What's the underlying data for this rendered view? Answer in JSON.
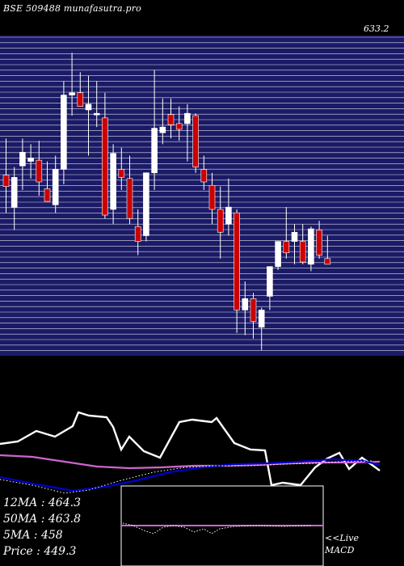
{
  "header": {
    "title": "BSE 509488  munafasutra.pro",
    "top_price_label": "633.2"
  },
  "colors": {
    "background": "#000000",
    "grid_band": "#1a1a66",
    "grid_line": "#ffffff",
    "bull_candle": "#ffffff",
    "bear_candle": "#cc0000",
    "price_line": "#ffffff",
    "ma_pink": "#cc66cc",
    "ma_blue": "#0000cc",
    "dotted": "#ffffff"
  },
  "indicators": {
    "ma12": {
      "label": "12MA",
      "value": "464.3"
    },
    "ma50": {
      "label": "50MA",
      "value": "463.8"
    },
    "ma5": {
      "label": "5MA",
      "value": "458"
    },
    "price": {
      "label": "Price ",
      "value": "449.3"
    }
  },
  "live_label": "<<Live",
  "macd_label": "MACD",
  "chart_data": {
    "type": "candlestick",
    "title": "BSE 509488  munafasutra.pro",
    "candles": [
      {
        "o": 558,
        "h": 590,
        "l": 525,
        "c": 548
      },
      {
        "o": 530,
        "h": 565,
        "l": 510,
        "c": 556
      },
      {
        "o": 566,
        "h": 590,
        "l": 545,
        "c": 578
      },
      {
        "o": 570,
        "h": 585,
        "l": 555,
        "c": 573
      },
      {
        "o": 571,
        "h": 588,
        "l": 540,
        "c": 552
      },
      {
        "o": 546,
        "h": 570,
        "l": 535,
        "c": 535
      },
      {
        "o": 532,
        "h": 575,
        "l": 525,
        "c": 563
      },
      {
        "o": 563,
        "h": 640,
        "l": 550,
        "c": 628
      },
      {
        "o": 628,
        "h": 665,
        "l": 610,
        "c": 630
      },
      {
        "o": 630,
        "h": 648,
        "l": 618,
        "c": 618
      },
      {
        "o": 615,
        "h": 645,
        "l": 575,
        "c": 620
      },
      {
        "o": 612,
        "h": 640,
        "l": 600,
        "c": 612
      },
      {
        "o": 608,
        "h": 630,
        "l": 520,
        "c": 523
      },
      {
        "o": 528,
        "h": 585,
        "l": 515,
        "c": 577
      },
      {
        "o": 563,
        "h": 582,
        "l": 545,
        "c": 556
      },
      {
        "o": 555,
        "h": 575,
        "l": 515,
        "c": 520
      },
      {
        "o": 513,
        "h": 528,
        "l": 488,
        "c": 500
      },
      {
        "o": 505,
        "h": 560,
        "l": 500,
        "c": 560
      },
      {
        "o": 560,
        "h": 650,
        "l": 545,
        "c": 599
      },
      {
        "o": 595,
        "h": 625,
        "l": 585,
        "c": 600
      },
      {
        "o": 611,
        "h": 625,
        "l": 590,
        "c": 602
      },
      {
        "o": 603,
        "h": 618,
        "l": 588,
        "c": 598
      },
      {
        "o": 603,
        "h": 620,
        "l": 570,
        "c": 612
      },
      {
        "o": 610,
        "h": 612,
        "l": 560,
        "c": 565
      },
      {
        "o": 563,
        "h": 575,
        "l": 545,
        "c": 552
      },
      {
        "o": 549,
        "h": 560,
        "l": 515,
        "c": 528
      },
      {
        "o": 528,
        "h": 548,
        "l": 485,
        "c": 508
      },
      {
        "o": 515,
        "h": 555,
        "l": 505,
        "c": 530
      },
      {
        "o": 525,
        "h": 528,
        "l": 420,
        "c": 440
      },
      {
        "o": 440,
        "h": 465,
        "l": 418,
        "c": 450
      },
      {
        "o": 450,
        "h": 455,
        "l": 415,
        "c": 430
      },
      {
        "o": 425,
        "h": 442,
        "l": 405,
        "c": 440
      },
      {
        "o": 452,
        "h": 478,
        "l": 440,
        "c": 478
      },
      {
        "o": 478,
        "h": 500,
        "l": 475,
        "c": 500
      },
      {
        "o": 500,
        "h": 530,
        "l": 485,
        "c": 490
      },
      {
        "o": 500,
        "h": 515,
        "l": 480,
        "c": 508
      },
      {
        "o": 500,
        "h": 515,
        "l": 480,
        "c": 482
      },
      {
        "o": 480,
        "h": 513,
        "l": 474,
        "c": 511
      },
      {
        "o": 510,
        "h": 518,
        "l": 485,
        "c": 488
      },
      {
        "o": 485,
        "h": 505,
        "l": 480,
        "c": 480
      }
    ],
    "y_range": [
      400,
      680
    ],
    "top_price_label": "633.2",
    "lower_panel": {
      "name": "MACD",
      "labels": [
        "12MA : 464.3",
        "50MA : 463.8",
        "5MA : 458",
        "Price  : 449.3"
      ]
    }
  }
}
